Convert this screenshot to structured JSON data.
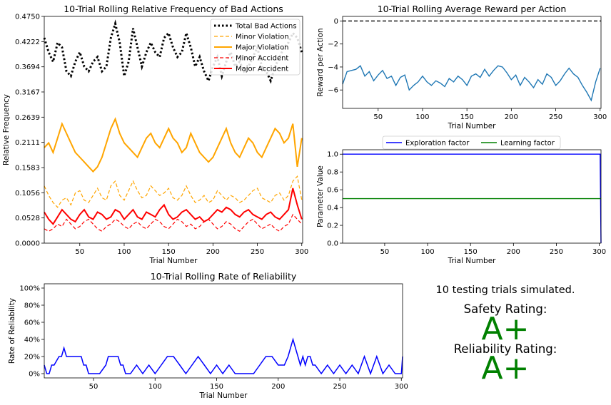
{
  "colors": {
    "total_bad": "#000000",
    "minor_violation": "#FFA500",
    "major_violation": "#FFA500",
    "minor_accident": "#FF0000",
    "major_accident": "#FF0000",
    "reward": "#1f77b4",
    "dashed_ref": "#000000",
    "exploration": "#0000FF",
    "learning": "#008000",
    "reliability": "#0000FF",
    "rating": "#008000"
  },
  "chart_data": [
    {
      "type": "line",
      "title": "10-Trial Rolling Relative Frequency of Bad Actions",
      "xlabel": "Trial Number",
      "ylabel": "Relative Frequency",
      "xlim": [
        10,
        301
      ],
      "ylim": [
        0,
        0.475
      ],
      "xticks": [
        "50",
        "100",
        "150",
        "200",
        "250",
        "300"
      ],
      "yticks": [
        "0.0000",
        "0.0528",
        "0.1056",
        "0.1583",
        "0.2111",
        "0.2639",
        "0.3167",
        "0.3694",
        "0.4222",
        "0.4750"
      ],
      "legend": "top-right",
      "legend_entries": [
        "Total Bad Actions",
        "Minor Violation",
        "Major Violation",
        "Minor Accident",
        "Major Accident"
      ],
      "series": [
        {
          "name": "Total Bad Actions",
          "style": "dotted",
          "x": [
            10,
            15,
            20,
            25,
            30,
            35,
            40,
            45,
            50,
            55,
            60,
            65,
            70,
            75,
            80,
            85,
            90,
            95,
            100,
            105,
            110,
            115,
            120,
            125,
            130,
            135,
            140,
            145,
            150,
            155,
            160,
            165,
            170,
            175,
            180,
            185,
            190,
            195,
            200,
            205,
            210,
            215,
            220,
            225,
            230,
            235,
            240,
            245,
            250,
            255,
            260,
            265,
            270,
            275,
            280,
            285,
            290,
            295,
            300
          ],
          "y": [
            0.43,
            0.4,
            0.38,
            0.42,
            0.41,
            0.36,
            0.35,
            0.38,
            0.4,
            0.37,
            0.36,
            0.38,
            0.39,
            0.36,
            0.37,
            0.43,
            0.46,
            0.42,
            0.35,
            0.38,
            0.45,
            0.41,
            0.37,
            0.4,
            0.42,
            0.4,
            0.39,
            0.43,
            0.44,
            0.41,
            0.39,
            0.4,
            0.44,
            0.41,
            0.37,
            0.39,
            0.36,
            0.34,
            0.37,
            0.39,
            0.35,
            0.38,
            0.4,
            0.37,
            0.38,
            0.36,
            0.37,
            0.39,
            0.41,
            0.37,
            0.36,
            0.34,
            0.37,
            0.39,
            0.41,
            0.42,
            0.44,
            0.43,
            0.4
          ]
        },
        {
          "name": "Minor Violation",
          "style": "dashed",
          "x": [
            10,
            15,
            20,
            25,
            30,
            35,
            40,
            45,
            50,
            55,
            60,
            65,
            70,
            75,
            80,
            85,
            90,
            95,
            100,
            105,
            110,
            115,
            120,
            125,
            130,
            135,
            140,
            145,
            150,
            155,
            160,
            165,
            170,
            175,
            180,
            185,
            190,
            195,
            200,
            205,
            210,
            215,
            220,
            225,
            230,
            235,
            240,
            245,
            250,
            255,
            260,
            265,
            270,
            275,
            280,
            285,
            290,
            295,
            300
          ],
          "y": [
            0.12,
            0.1,
            0.085,
            0.075,
            0.09,
            0.095,
            0.08,
            0.105,
            0.11,
            0.09,
            0.085,
            0.1,
            0.115,
            0.095,
            0.09,
            0.12,
            0.13,
            0.1,
            0.09,
            0.11,
            0.13,
            0.11,
            0.095,
            0.1,
            0.12,
            0.11,
            0.1,
            0.105,
            0.115,
            0.095,
            0.09,
            0.1,
            0.12,
            0.1,
            0.085,
            0.09,
            0.1,
            0.085,
            0.09,
            0.11,
            0.1,
            0.09,
            0.1,
            0.095,
            0.085,
            0.09,
            0.1,
            0.11,
            0.115,
            0.095,
            0.09,
            0.085,
            0.1,
            0.105,
            0.09,
            0.1,
            0.13,
            0.14,
            0.09
          ]
        },
        {
          "name": "Major Violation",
          "style": "solid",
          "x": [
            10,
            15,
            20,
            25,
            30,
            35,
            40,
            45,
            50,
            55,
            60,
            65,
            70,
            75,
            80,
            85,
            90,
            95,
            100,
            105,
            110,
            115,
            120,
            125,
            130,
            135,
            140,
            145,
            150,
            155,
            160,
            165,
            170,
            175,
            180,
            185,
            190,
            195,
            200,
            205,
            210,
            215,
            220,
            225,
            230,
            235,
            240,
            245,
            250,
            255,
            260,
            265,
            270,
            275,
            280,
            285,
            290,
            295,
            300
          ],
          "y": [
            0.2,
            0.21,
            0.19,
            0.22,
            0.25,
            0.23,
            0.21,
            0.19,
            0.18,
            0.17,
            0.16,
            0.15,
            0.16,
            0.18,
            0.21,
            0.24,
            0.26,
            0.23,
            0.21,
            0.2,
            0.19,
            0.18,
            0.2,
            0.22,
            0.23,
            0.21,
            0.2,
            0.22,
            0.24,
            0.22,
            0.21,
            0.19,
            0.2,
            0.23,
            0.21,
            0.19,
            0.18,
            0.17,
            0.18,
            0.2,
            0.22,
            0.24,
            0.21,
            0.19,
            0.18,
            0.2,
            0.22,
            0.21,
            0.19,
            0.18,
            0.2,
            0.22,
            0.24,
            0.23,
            0.21,
            0.22,
            0.25,
            0.16,
            0.22
          ]
        },
        {
          "name": "Minor Accident",
          "style": "dashed",
          "x": [
            10,
            15,
            20,
            25,
            30,
            35,
            40,
            45,
            50,
            55,
            60,
            65,
            70,
            75,
            80,
            85,
            90,
            95,
            100,
            105,
            110,
            115,
            120,
            125,
            130,
            135,
            140,
            145,
            150,
            155,
            160,
            165,
            170,
            175,
            180,
            185,
            190,
            195,
            200,
            205,
            210,
            215,
            220,
            225,
            230,
            235,
            240,
            245,
            250,
            255,
            260,
            265,
            270,
            275,
            280,
            285,
            290,
            295,
            300
          ],
          "y": [
            0.03,
            0.025,
            0.03,
            0.04,
            0.035,
            0.05,
            0.04,
            0.03,
            0.035,
            0.045,
            0.05,
            0.04,
            0.03,
            0.025,
            0.035,
            0.04,
            0.05,
            0.045,
            0.035,
            0.03,
            0.04,
            0.045,
            0.035,
            0.03,
            0.04,
            0.05,
            0.045,
            0.035,
            0.03,
            0.04,
            0.05,
            0.045,
            0.035,
            0.04,
            0.03,
            0.035,
            0.045,
            0.05,
            0.04,
            0.03,
            0.035,
            0.045,
            0.04,
            0.03,
            0.025,
            0.035,
            0.045,
            0.05,
            0.04,
            0.03,
            0.035,
            0.04,
            0.03,
            0.025,
            0.035,
            0.04,
            0.06,
            0.05,
            0.04
          ]
        },
        {
          "name": "Major Accident",
          "style": "solid",
          "x": [
            10,
            15,
            20,
            25,
            30,
            35,
            40,
            45,
            50,
            55,
            60,
            65,
            70,
            75,
            80,
            85,
            90,
            95,
            100,
            105,
            110,
            115,
            120,
            125,
            130,
            135,
            140,
            145,
            150,
            155,
            160,
            165,
            170,
            175,
            180,
            185,
            190,
            195,
            200,
            205,
            210,
            215,
            220,
            225,
            230,
            235,
            240,
            245,
            250,
            255,
            260,
            265,
            270,
            275,
            280,
            285,
            290,
            295,
            300
          ],
          "y": [
            0.065,
            0.05,
            0.04,
            0.055,
            0.07,
            0.06,
            0.05,
            0.045,
            0.06,
            0.07,
            0.055,
            0.05,
            0.065,
            0.06,
            0.05,
            0.055,
            0.07,
            0.065,
            0.05,
            0.06,
            0.07,
            0.055,
            0.05,
            0.065,
            0.06,
            0.055,
            0.07,
            0.08,
            0.06,
            0.05,
            0.055,
            0.065,
            0.07,
            0.06,
            0.05,
            0.055,
            0.045,
            0.05,
            0.06,
            0.07,
            0.065,
            0.075,
            0.07,
            0.06,
            0.055,
            0.065,
            0.07,
            0.06,
            0.055,
            0.05,
            0.06,
            0.065,
            0.055,
            0.05,
            0.06,
            0.07,
            0.115,
            0.08,
            0.05
          ]
        }
      ]
    },
    {
      "type": "line",
      "title": "10-Trial Rolling Average Reward per Action",
      "xlabel": "Trial Number",
      "ylabel": "Reward per Action",
      "xlim": [
        10,
        301
      ],
      "ylim": [
        -7.6,
        0.4
      ],
      "xticks": [
        "50",
        "100",
        "150",
        "200",
        "250",
        "300"
      ],
      "yticks": [
        "0",
        "−2",
        "−4",
        "−6"
      ],
      "reference_line": 0,
      "series": [
        {
          "x": [
            10,
            15,
            20,
            25,
            30,
            35,
            40,
            45,
            50,
            55,
            60,
            65,
            70,
            75,
            80,
            85,
            90,
            95,
            100,
            105,
            110,
            115,
            120,
            125,
            130,
            135,
            140,
            145,
            150,
            155,
            160,
            165,
            170,
            175,
            180,
            185,
            190,
            195,
            200,
            205,
            210,
            215,
            220,
            225,
            230,
            235,
            240,
            245,
            250,
            255,
            260,
            265,
            270,
            275,
            280,
            285,
            290,
            295,
            300
          ],
          "y": [
            -5.5,
            -4.4,
            -4.3,
            -4.2,
            -3.9,
            -4.8,
            -4.4,
            -5.2,
            -4.7,
            -4.3,
            -5.0,
            -4.8,
            -5.6,
            -4.9,
            -4.7,
            -6.0,
            -5.6,
            -5.3,
            -4.8,
            -5.3,
            -5.6,
            -5.2,
            -5.4,
            -5.7,
            -5.0,
            -5.3,
            -4.8,
            -5.1,
            -5.6,
            -4.8,
            -4.6,
            -4.9,
            -4.2,
            -4.8,
            -4.3,
            -3.9,
            -4.0,
            -4.5,
            -5.1,
            -4.7,
            -5.6,
            -4.9,
            -5.3,
            -5.8,
            -5.1,
            -5.5,
            -4.6,
            -4.9,
            -5.6,
            -5.2,
            -4.6,
            -4.1,
            -4.6,
            -4.9,
            -5.6,
            -6.2,
            -6.9,
            -5.3,
            -4.1
          ]
        }
      ]
    },
    {
      "type": "line",
      "title": "",
      "xlabel": "Trial Number",
      "ylabel": "Parameter Value",
      "xlim": [
        1,
        302
      ],
      "ylim": [
        0,
        1.05
      ],
      "xticks": [
        "50",
        "100",
        "150",
        "200",
        "250",
        "300"
      ],
      "yticks": [
        "0.0",
        "0.2",
        "0.4",
        "0.6",
        "0.8",
        "1.0"
      ],
      "legend": "top-center",
      "legend_entries": [
        "Exploration factor",
        "Learning factor"
      ],
      "series": [
        {
          "name": "Exploration factor",
          "x": [
            1,
            300,
            301,
            302
          ],
          "y": [
            1.0,
            1.0,
            1.0,
            0.0
          ]
        },
        {
          "name": "Learning factor",
          "x": [
            1,
            302
          ],
          "y": [
            0.5,
            0.5
          ]
        }
      ]
    },
    {
      "type": "line",
      "title": "10-Trial Rolling Rate of Reliability",
      "xlabel": "Trial Number",
      "ylabel": "Rate of Reliability",
      "xlim": [
        10,
        301
      ],
      "ylim": [
        -5,
        105
      ],
      "xticks": [
        "50",
        "100",
        "150",
        "200",
        "250",
        "300"
      ],
      "yticks": [
        "0%",
        "20%",
        "40%",
        "60%",
        "80%",
        "100%"
      ],
      "series": [
        {
          "x": [
            10,
            12,
            14,
            16,
            18,
            22,
            24,
            26,
            28,
            30,
            40,
            42,
            44,
            46,
            48,
            50,
            55,
            60,
            62,
            64,
            66,
            70,
            72,
            74,
            76,
            78,
            80,
            85,
            90,
            95,
            100,
            105,
            110,
            115,
            120,
            125,
            130,
            135,
            140,
            145,
            150,
            155,
            160,
            165,
            170,
            175,
            180,
            185,
            190,
            195,
            200,
            205,
            208,
            210,
            212,
            214,
            216,
            218,
            220,
            222,
            224,
            226,
            228,
            230,
            235,
            240,
            245,
            250,
            255,
            260,
            265,
            270,
            275,
            280,
            285,
            290,
            295,
            300,
            301
          ],
          "y": [
            10,
            0,
            0,
            10,
            10,
            20,
            20,
            30,
            20,
            20,
            20,
            10,
            10,
            0,
            0,
            0,
            0,
            10,
            20,
            20,
            20,
            20,
            10,
            10,
            0,
            0,
            0,
            10,
            0,
            10,
            0,
            10,
            20,
            20,
            10,
            0,
            10,
            20,
            10,
            0,
            10,
            0,
            10,
            0,
            0,
            0,
            0,
            10,
            20,
            20,
            10,
            10,
            20,
            30,
            40,
            30,
            20,
            10,
            20,
            10,
            20,
            20,
            10,
            10,
            0,
            10,
            0,
            10,
            0,
            10,
            0,
            20,
            0,
            20,
            0,
            10,
            0,
            0,
            20
          ]
        }
      ]
    }
  ],
  "summary": {
    "trials_text": "10 testing trials simulated.",
    "safety_label": "Safety Rating:",
    "safety_grade": "A+",
    "reliability_label": "Reliability Rating:",
    "reliability_grade": "A+"
  }
}
